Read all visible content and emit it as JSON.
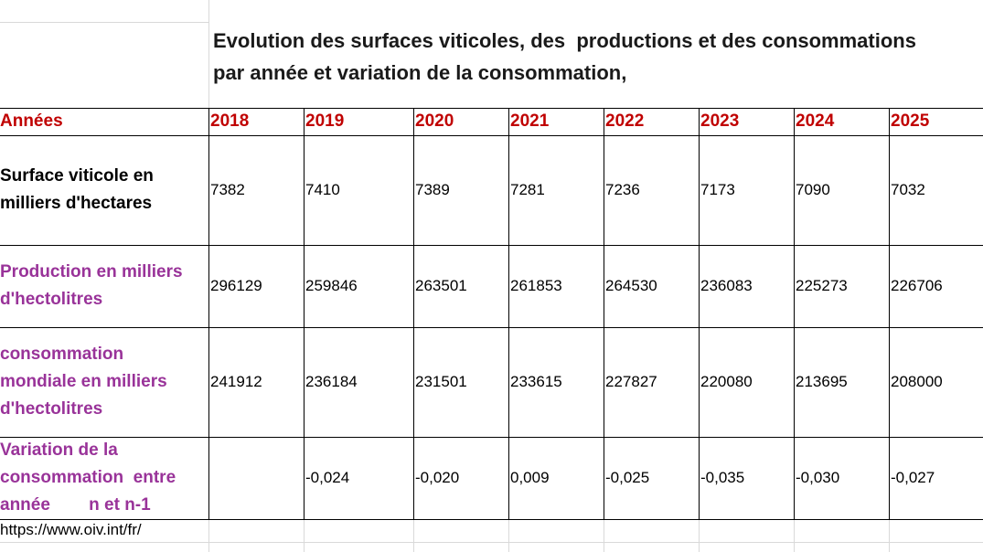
{
  "title": {
    "line1": "Evolution des surfaces viticoles, des  productions et des consommations",
    "line2": "par année et variation de la consommation,"
  },
  "header_label": "Années",
  "years": [
    "2018",
    "2019",
    "2020",
    "2021",
    "2022",
    "2023",
    "2024",
    "2025"
  ],
  "rows": [
    {
      "label": "Surface viticole en\nmilliers d'hectares",
      "color": "#000000",
      "values": [
        "7382",
        "7410",
        "7389",
        "7281",
        "7236",
        "7173",
        "7090",
        "7032"
      ]
    },
    {
      "label": "Production en milliers\nd'hectolitres",
      "color": "#993399",
      "values": [
        "296129",
        "259846",
        "263501",
        "261853",
        "264530",
        "236083",
        "225273",
        "226706"
      ]
    },
    {
      "label": "consommation\nmondiale en milliers\nd'hectolitres",
      "color": "#993399",
      "values": [
        "241912",
        "236184",
        "231501",
        "233615",
        "227827",
        "220080",
        "213695",
        "208000"
      ]
    },
    {
      "label": "Variation de la\nconsommation  entre\nannée        n et n-1",
      "color": "#993399",
      "values": [
        "",
        "-0,024",
        "-0,020",
        "0,009",
        "-0,025",
        "-0,035",
        "-0,030",
        "-0,027"
      ]
    }
  ],
  "source": "https://www.oiv.int/fr/",
  "colors": {
    "year": "#c00000",
    "label_purple": "#993399"
  }
}
